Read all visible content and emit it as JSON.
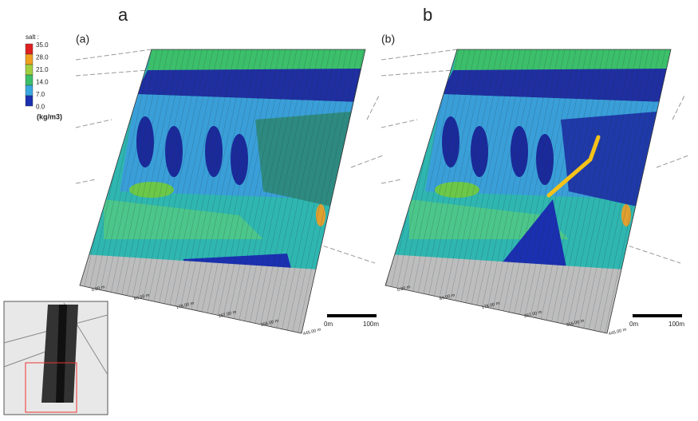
{
  "panel_labels": [
    "a",
    "b"
  ],
  "legend": {
    "title": "salt :",
    "ticks": [
      "35.0",
      "28.0",
      "21.0",
      "14.0",
      "7.0",
      "0.0"
    ],
    "unit": "(kg/m3)"
  },
  "panels": [
    {
      "tag": "(a)",
      "scale_bar": {
        "start": "0m",
        "end": "100m"
      },
      "distance_labels": [
        "0.00 m",
        "89.00 m",
        "178.00 m",
        "267.00 m",
        "356.00 m",
        "445.00 m"
      ]
    },
    {
      "tag": "(b)",
      "scale_bar": {
        "start": "0m",
        "end": "100m"
      },
      "distance_labels": [
        "0.00 m",
        "89.00 m",
        "178.00 m",
        "267.00 m",
        "356.00 m",
        "445.00 m"
      ]
    }
  ]
}
